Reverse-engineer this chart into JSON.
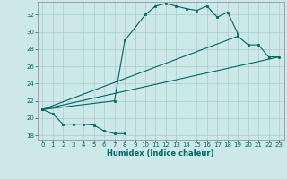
{
  "bg_color": "#cce8e8",
  "grid_color": "#aacccc",
  "line_color": "#006666",
  "xlabel": "Humidex (Indice chaleur)",
  "xlim": [
    -0.5,
    23.5
  ],
  "ylim": [
    17.5,
    33.5
  ],
  "yticks": [
    18,
    20,
    22,
    24,
    26,
    28,
    30,
    32
  ],
  "xticks": [
    0,
    1,
    2,
    3,
    4,
    5,
    6,
    7,
    8,
    9,
    10,
    11,
    12,
    13,
    14,
    15,
    16,
    17,
    18,
    19,
    20,
    21,
    22,
    23
  ],
  "series": [
    {
      "x": [
        0,
        1,
        2,
        3,
        4,
        5,
        6,
        7,
        8
      ],
      "y": [
        21.0,
        20.5,
        19.3,
        19.3,
        19.3,
        19.2,
        18.5,
        18.2,
        18.2
      ],
      "marker": true
    },
    {
      "x": [
        0,
        7,
        8,
        10,
        11,
        12,
        13,
        14,
        15,
        16,
        17,
        18,
        19
      ],
      "y": [
        21.0,
        22.0,
        29.0,
        32.0,
        33.0,
        33.3,
        33.0,
        32.7,
        32.5,
        33.0,
        31.7,
        32.3,
        29.8
      ],
      "marker": true
    },
    {
      "x": [
        0,
        19,
        20,
        21,
        22,
        23
      ],
      "y": [
        21.0,
        29.5,
        28.5,
        28.5,
        27.1,
        27.1
      ],
      "marker": true
    },
    {
      "x": [
        0,
        23
      ],
      "y": [
        21.0,
        27.1
      ],
      "marker": false
    }
  ]
}
